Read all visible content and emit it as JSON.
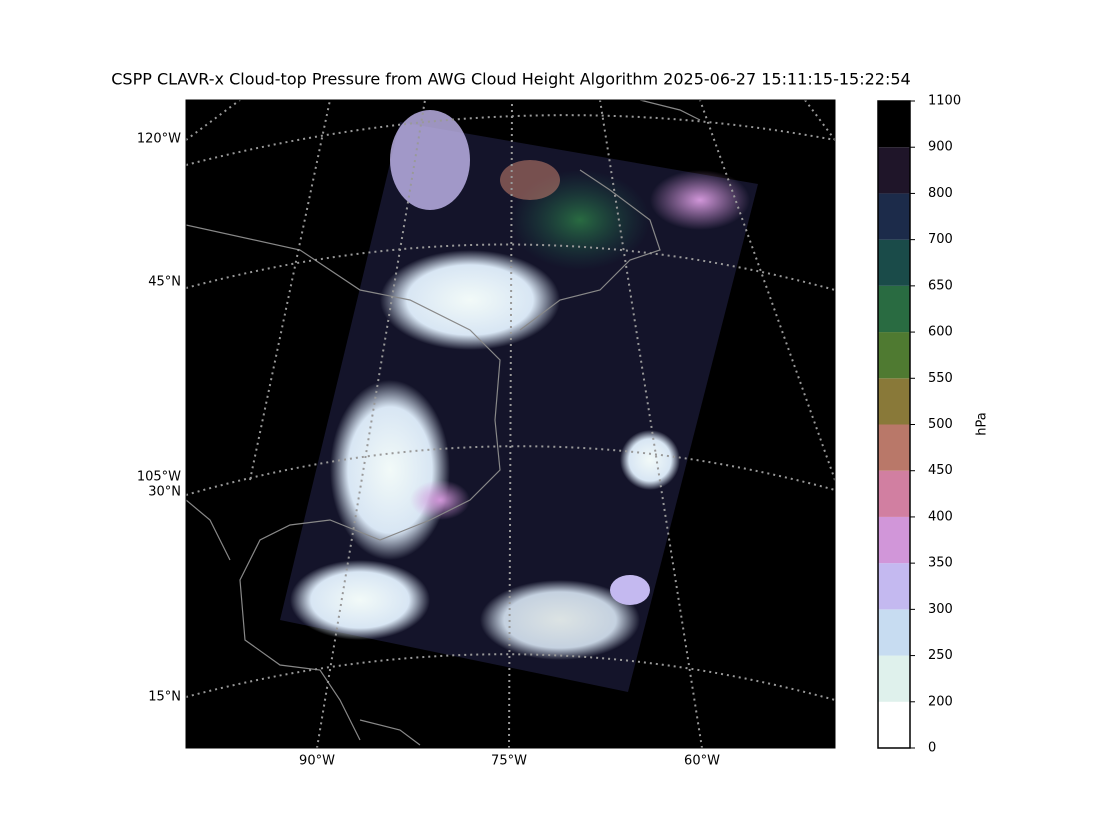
{
  "title": "CSPP CLAVR-x Cloud-top Pressure from AWG Cloud Height Algorithm 2025-06-27 15:11:15-15:22:54",
  "map": {
    "left_labels": [
      "120°W",
      "45°N",
      "105°W",
      "30°N",
      "15°N"
    ],
    "bottom_labels": [
      "90°W",
      "75°W",
      "60°W"
    ]
  },
  "colorbar": {
    "label": "hPa",
    "ticks": [
      0,
      200,
      250,
      300,
      350,
      400,
      450,
      500,
      550,
      600,
      650,
      700,
      800,
      900,
      1100
    ],
    "colors": [
      "#ffffff",
      "#dff1ec",
      "#c7dcf1",
      "#c4b9f0",
      "#d196d9",
      "#d17fa1",
      "#b97869",
      "#897939",
      "#4f7a31",
      "#296b41",
      "#1a4b49",
      "#1c2b4a",
      "#1f1529",
      "#000000"
    ]
  }
}
